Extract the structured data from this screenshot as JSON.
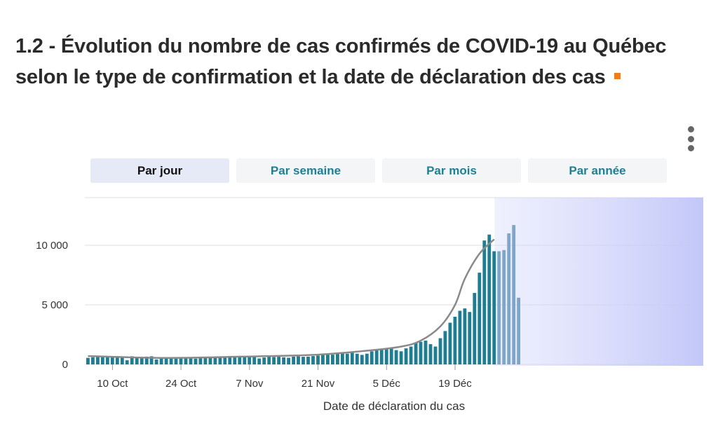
{
  "title": "1.2 - Évolution du nombre de cas confirmés de COVID-19 au Québec selon le type de confirmation et la date de déclaration des cas",
  "menu": {
    "icon": "vertical-dots-icon"
  },
  "tabs": [
    {
      "label": "Par jour",
      "active": true
    },
    {
      "label": "Par semaine",
      "active": false
    },
    {
      "label": "Par mois",
      "active": false
    },
    {
      "label": "Par année",
      "active": false
    }
  ],
  "colors": {
    "bar": "#1f7d91",
    "bar_recent": "#7fa6c9",
    "line": "#8a8a8a",
    "grid": "#dcdcdc",
    "highlight": "#cfd2f7",
    "marker": "#f07f1a"
  },
  "chart_data": {
    "type": "bar",
    "xlabel": "Date de déclaration du cas",
    "ylabel": "",
    "ylim": [
      0,
      14000
    ],
    "yticks": [
      {
        "value": 0,
        "label": "0"
      },
      {
        "value": 5000,
        "label": "5 000"
      },
      {
        "value": 10000,
        "label": "10 000"
      }
    ],
    "x_start": "2020-10-05",
    "xticks": [
      {
        "date": "2020-10-10",
        "label": "10 Oct"
      },
      {
        "date": "2020-10-24",
        "label": "24 Oct"
      },
      {
        "date": "2020-11-07",
        "label": "7 Nov"
      },
      {
        "date": "2020-11-21",
        "label": "21 Nov"
      },
      {
        "date": "2020-12-05",
        "label": "5 Déc"
      },
      {
        "date": "2020-12-19",
        "label": "19 Déc"
      }
    ],
    "grid": true,
    "highlight_from_date": "2020-12-28",
    "values": [
      550,
      600,
      620,
      650,
      600,
      620,
      680,
      600,
      350,
      680,
      620,
      640,
      650,
      680,
      420,
      480,
      520,
      600,
      480,
      520,
      500,
      550,
      480,
      580,
      600,
      600,
      620,
      640,
      600,
      620,
      660,
      600,
      620,
      640,
      650,
      500,
      580,
      640,
      620,
      640,
      600,
      560,
      650,
      680,
      640,
      650,
      700,
      750,
      800,
      850,
      820,
      900,
      950,
      900,
      980,
      900,
      800,
      900,
      1100,
      1200,
      1300,
      1350,
      1400,
      1200,
      1100,
      1350,
      1500,
      1800,
      1900,
      2000,
      1700,
      1500,
      2200,
      2800,
      3500,
      4000,
      4500,
      4700,
      4400,
      6000,
      7700,
      10400,
      10900,
      9500,
      9500,
      9600,
      11000,
      11700,
      5600
    ],
    "trend": [
      {
        "date": "2020-10-05",
        "value": 700
      },
      {
        "date": "2020-10-20",
        "value": 550
      },
      {
        "date": "2020-11-05",
        "value": 650
      },
      {
        "date": "2020-11-20",
        "value": 800
      },
      {
        "date": "2020-12-01",
        "value": 1150
      },
      {
        "date": "2020-12-08",
        "value": 1500
      },
      {
        "date": "2020-12-12",
        "value": 2000
      },
      {
        "date": "2020-12-16",
        "value": 3200
      },
      {
        "date": "2020-12-19",
        "value": 5000
      },
      {
        "date": "2020-12-21",
        "value": 7200
      },
      {
        "date": "2020-12-24",
        "value": 9300
      },
      {
        "date": "2020-12-27",
        "value": 10500
      }
    ]
  }
}
